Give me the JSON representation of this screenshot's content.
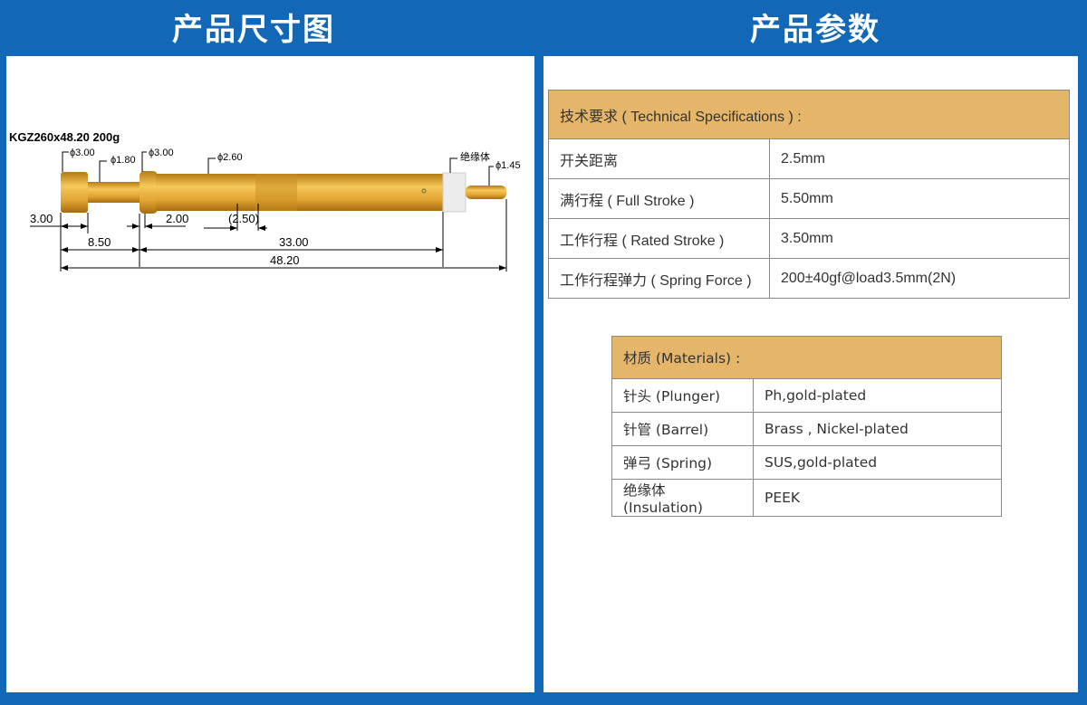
{
  "headers": {
    "left": "产品尺寸图",
    "right": "产品参数"
  },
  "drawing": {
    "model": "KGZ260x48.20 200g",
    "diameters": [
      "ϕ3.00",
      "ϕ1.80",
      "ϕ3.00",
      "ϕ2.60",
      "ϕ1.45"
    ],
    "insulation_label": "绝缘体",
    "dims": {
      "head": "3.00",
      "collar": "2.00",
      "travel": "(2.50)",
      "plunger": "8.50",
      "barrel": "33.00",
      "total": "48.20"
    },
    "colors": {
      "gold": "#e0a431",
      "insulator": "#f0f0f0"
    }
  },
  "spec": {
    "header": "技术要求 ( Technical Specifications ) :",
    "rows": [
      {
        "label": "开关距离",
        "value": "2.5mm"
      },
      {
        "label": "满行程 ( Full Stroke )",
        "value": "5.50mm"
      },
      {
        "label": "工作行程 ( Rated Stroke )",
        "value": "3.50mm"
      },
      {
        "label": "工作行程弹力 ( Spring Force )",
        "value": "200±40gf@load3.5mm(2N)"
      }
    ]
  },
  "materials": {
    "header": "材质 (Materials) :",
    "rows": [
      {
        "label": "针头 (Plunger)",
        "value": "Ph,gold-plated"
      },
      {
        "label": "针管 (Barrel)",
        "value": "Brass , Nickel-plated"
      },
      {
        "label": "弹弓 (Spring)",
        "value": "SUS,gold-plated"
      },
      {
        "label": "绝缘体 (Insulation)",
        "value": "PEEK"
      }
    ]
  }
}
